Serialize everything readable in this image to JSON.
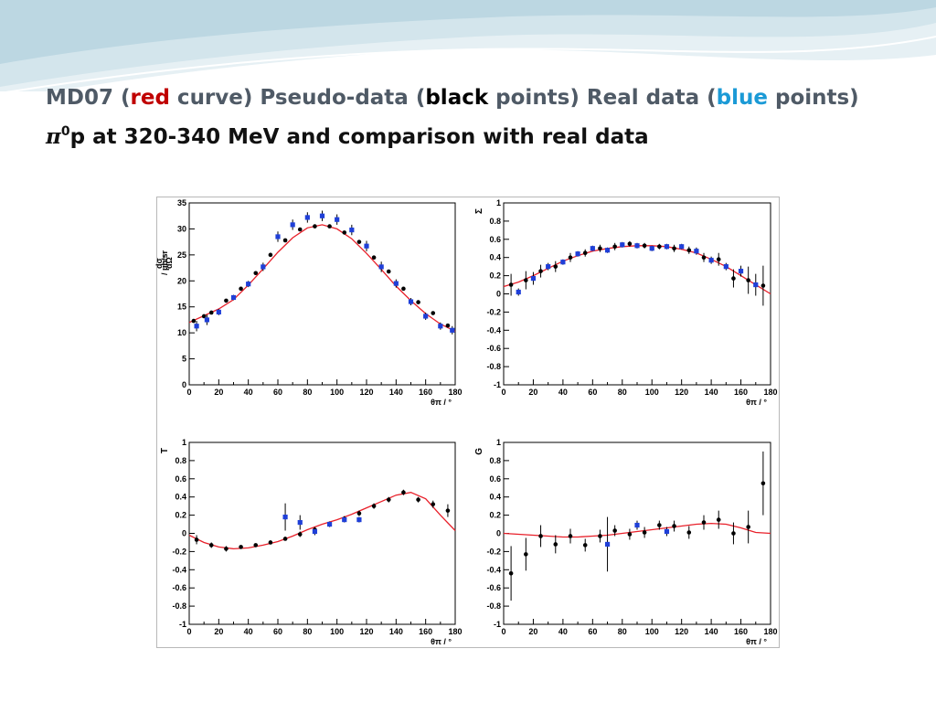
{
  "title": {
    "line1": {
      "prefix": "MD07 (",
      "red_word": "red",
      "after_red": " curve) Pseudo-data (",
      "black_word": "black",
      "after_black": " points) Real data (",
      "blue_word": "blue",
      "suffix": " points)"
    },
    "line2": {
      "symbol": "π",
      "superscript": "0",
      "text": "p at 320-340 MeV and comparison with real data"
    }
  },
  "colors": {
    "title_text": "#4f5a66",
    "red_word": "#c00000",
    "blue_word": "#1b9ad6",
    "model_curve": "#e8202a",
    "pseudo_data": "#000000",
    "real_data": "#1f3fd8",
    "decor_wave_light": "#dcebf1",
    "decor_wave_mid": "#b9d6e2"
  },
  "chart_data": [
    {
      "type": "scatter",
      "panel": "top-left",
      "ylabel_top": "dσ",
      "ylabel_bottom": "dΩ",
      "ylabel_unit": "/ μb/sr",
      "xlabel": "θπ / °",
      "xlim": [
        0,
        180
      ],
      "ylim": [
        0,
        35
      ],
      "xticks": [
        0,
        20,
        40,
        60,
        80,
        100,
        120,
        140,
        160,
        180
      ],
      "yticks": [
        0,
        5,
        10,
        15,
        20,
        25,
        30,
        35
      ],
      "curve": [
        [
          0,
          12
        ],
        [
          10,
          13.3
        ],
        [
          20,
          14.6
        ],
        [
          30,
          16.4
        ],
        [
          40,
          19.2
        ],
        [
          50,
          22.3
        ],
        [
          60,
          25.5
        ],
        [
          70,
          28.3
        ],
        [
          80,
          30.2
        ],
        [
          90,
          30.8
        ],
        [
          100,
          30
        ],
        [
          110,
          28.1
        ],
        [
          120,
          25.3
        ],
        [
          130,
          22.2
        ],
        [
          140,
          19
        ],
        [
          150,
          16.2
        ],
        [
          160,
          13.7
        ],
        [
          170,
          11.7
        ],
        [
          180,
          10.3
        ]
      ],
      "pseudo_data": [
        [
          3,
          12.3
        ],
        [
          10,
          13.2
        ],
        [
          15,
          13.9
        ],
        [
          25,
          16.2
        ],
        [
          35,
          18.5
        ],
        [
          45,
          21.5
        ],
        [
          55,
          25
        ],
        [
          65,
          27.8
        ],
        [
          75,
          29.9
        ],
        [
          85,
          30.5
        ],
        [
          95,
          30.5
        ],
        [
          105,
          29.3
        ],
        [
          115,
          27.5
        ],
        [
          125,
          24.5
        ],
        [
          135,
          21.8
        ],
        [
          145,
          18.5
        ],
        [
          155,
          15.9
        ],
        [
          165,
          13.8
        ],
        [
          175,
          11.4
        ]
      ],
      "real_data": [
        [
          5,
          11.3,
          1
        ],
        [
          12,
          12.5,
          1
        ],
        [
          20,
          14,
          0.6
        ],
        [
          30,
          16.8,
          0.5
        ],
        [
          40,
          19.4,
          0.6
        ],
        [
          50,
          22.7,
          0.8
        ],
        [
          60,
          28.5,
          1
        ],
        [
          70,
          30.8,
          1
        ],
        [
          80,
          32.2,
          1
        ],
        [
          90,
          32.5,
          1
        ],
        [
          100,
          31.8,
          1
        ],
        [
          110,
          29.8,
          1
        ],
        [
          120,
          26.7,
          1
        ],
        [
          130,
          22.7,
          1
        ],
        [
          140,
          19.5,
          0.8
        ],
        [
          150,
          16,
          0.7
        ],
        [
          160,
          13.2,
          0.7
        ],
        [
          170,
          11.3,
          0.7
        ],
        [
          178,
          10.5,
          0.8
        ]
      ]
    },
    {
      "type": "scatter",
      "panel": "top-right",
      "ylabel": "Σ",
      "xlabel": "θπ / °",
      "xlim": [
        0,
        180
      ],
      "ylim": [
        -1,
        1
      ],
      "xticks": [
        0,
        20,
        40,
        60,
        80,
        100,
        120,
        140,
        160,
        180
      ],
      "yticks": [
        -1,
        -0.8,
        -0.6,
        -0.4,
        -0.2,
        0,
        0.2,
        0.4,
        0.6,
        0.8,
        1
      ],
      "curve": [
        [
          0,
          0.08
        ],
        [
          10,
          0.13
        ],
        [
          20,
          0.2
        ],
        [
          30,
          0.28
        ],
        [
          40,
          0.36
        ],
        [
          50,
          0.42
        ],
        [
          60,
          0.47
        ],
        [
          70,
          0.5
        ],
        [
          80,
          0.52
        ],
        [
          90,
          0.53
        ],
        [
          100,
          0.53
        ],
        [
          110,
          0.52
        ],
        [
          120,
          0.49
        ],
        [
          130,
          0.45
        ],
        [
          140,
          0.38
        ],
        [
          150,
          0.3
        ],
        [
          160,
          0.2
        ],
        [
          170,
          0.1
        ],
        [
          180,
          0
        ]
      ],
      "pseudo_data": [
        [
          5,
          0.1,
          0.12
        ],
        [
          15,
          0.15,
          0.1
        ],
        [
          25,
          0.25,
          0.07
        ],
        [
          35,
          0.3,
          0.06
        ],
        [
          45,
          0.4,
          0.05
        ],
        [
          55,
          0.45,
          0.04
        ],
        [
          65,
          0.5,
          0.04
        ],
        [
          75,
          0.52,
          0.04
        ],
        [
          85,
          0.55,
          0.03
        ],
        [
          95,
          0.53,
          0.03
        ],
        [
          105,
          0.52,
          0.03
        ],
        [
          115,
          0.5,
          0.04
        ],
        [
          125,
          0.48,
          0.04
        ],
        [
          135,
          0.4,
          0.05
        ],
        [
          145,
          0.38,
          0.07
        ],
        [
          155,
          0.17,
          0.1
        ],
        [
          165,
          0.15,
          0.15
        ],
        [
          175,
          0.09,
          0.22
        ]
      ],
      "real_data": [
        [
          10,
          0.02,
          0.04
        ],
        [
          20,
          0.17,
          0.07
        ],
        [
          30,
          0.3,
          0.04
        ],
        [
          40,
          0.35,
          0.03
        ],
        [
          50,
          0.44,
          0.03
        ],
        [
          60,
          0.5,
          0.03
        ],
        [
          70,
          0.48,
          0.03
        ],
        [
          80,
          0.54,
          0.03
        ],
        [
          90,
          0.53,
          0.03
        ],
        [
          100,
          0.5,
          0.03
        ],
        [
          110,
          0.52,
          0.03
        ],
        [
          120,
          0.52,
          0.03
        ],
        [
          130,
          0.47,
          0.04
        ],
        [
          140,
          0.37,
          0.04
        ],
        [
          150,
          0.3,
          0.04
        ],
        [
          160,
          0.25,
          0.06
        ],
        [
          170,
          0.1,
          0.12
        ]
      ]
    },
    {
      "type": "scatter",
      "panel": "bottom-left",
      "ylabel": "T",
      "xlabel": "θπ / °",
      "xlim": [
        0,
        180
      ],
      "ylim": [
        -1,
        1
      ],
      "xticks": [
        0,
        20,
        40,
        60,
        80,
        100,
        120,
        140,
        160,
        180
      ],
      "yticks": [
        -1,
        -0.8,
        -0.6,
        -0.4,
        -0.2,
        0,
        0.2,
        0.4,
        0.6,
        0.8,
        1
      ],
      "curve": [
        [
          0,
          -0.02
        ],
        [
          10,
          -0.1
        ],
        [
          20,
          -0.15
        ],
        [
          30,
          -0.17
        ],
        [
          40,
          -0.16
        ],
        [
          50,
          -0.13
        ],
        [
          60,
          -0.09
        ],
        [
          70,
          -0.03
        ],
        [
          80,
          0.04
        ],
        [
          90,
          0.1
        ],
        [
          100,
          0.15
        ],
        [
          110,
          0.21
        ],
        [
          120,
          0.28
        ],
        [
          130,
          0.35
        ],
        [
          140,
          0.42
        ],
        [
          150,
          0.45
        ],
        [
          160,
          0.38
        ],
        [
          170,
          0.2
        ],
        [
          180,
          0.03
        ]
      ],
      "pseudo_data": [
        [
          5,
          -0.07,
          0.05
        ],
        [
          15,
          -0.13,
          0.03
        ],
        [
          25,
          -0.17,
          0.03
        ],
        [
          35,
          -0.15,
          0.02
        ],
        [
          45,
          -0.13,
          0.02
        ],
        [
          55,
          -0.1,
          0.02
        ],
        [
          65,
          -0.06,
          0.02
        ],
        [
          75,
          -0.01,
          0.03
        ],
        [
          85,
          0.04,
          0.03
        ],
        [
          95,
          0.1,
          0.03
        ],
        [
          105,
          0.16,
          0.03
        ],
        [
          115,
          0.22,
          0.03
        ],
        [
          125,
          0.3,
          0.03
        ],
        [
          135,
          0.37,
          0.03
        ],
        [
          145,
          0.45,
          0.03
        ],
        [
          155,
          0.37,
          0.03
        ],
        [
          165,
          0.32,
          0.04
        ],
        [
          175,
          0.25,
          0.07
        ]
      ],
      "real_data": [
        [
          65,
          0.18,
          0.15
        ],
        [
          75,
          0.12,
          0.08
        ],
        [
          85,
          0.02,
          0.04
        ],
        [
          95,
          0.1,
          0.03
        ],
        [
          105,
          0.15,
          0.03
        ],
        [
          115,
          0.15,
          0.03
        ]
      ]
    },
    {
      "type": "scatter",
      "panel": "bottom-right",
      "ylabel": "G",
      "xlabel": "θπ / °",
      "xlim": [
        0,
        180
      ],
      "ylim": [
        -1,
        1
      ],
      "xticks": [
        0,
        20,
        40,
        60,
        80,
        100,
        120,
        140,
        160,
        180
      ],
      "yticks": [
        -1,
        -0.8,
        -0.6,
        -0.4,
        -0.2,
        0,
        0.2,
        0.4,
        0.6,
        0.8,
        1
      ],
      "curve": [
        [
          0,
          0
        ],
        [
          10,
          -0.01
        ],
        [
          20,
          -0.02
        ],
        [
          30,
          -0.03
        ],
        [
          40,
          -0.04
        ],
        [
          50,
          -0.04
        ],
        [
          60,
          -0.03
        ],
        [
          70,
          -0.02
        ],
        [
          80,
          0
        ],
        [
          90,
          0.02
        ],
        [
          100,
          0.04
        ],
        [
          110,
          0.06
        ],
        [
          120,
          0.08
        ],
        [
          130,
          0.1
        ],
        [
          140,
          0.11
        ],
        [
          150,
          0.1
        ],
        [
          160,
          0.06
        ],
        [
          170,
          0.01
        ],
        [
          180,
          0
        ]
      ],
      "pseudo_data": [
        [
          5,
          -0.44,
          0.3
        ],
        [
          15,
          -0.23,
          0.18
        ],
        [
          25,
          -0.03,
          0.12
        ],
        [
          35,
          -0.12,
          0.1
        ],
        [
          45,
          -0.03,
          0.08
        ],
        [
          55,
          -0.13,
          0.07
        ],
        [
          65,
          -0.03,
          0.07
        ],
        [
          75,
          0.03,
          0.06
        ],
        [
          85,
          -0.01,
          0.06
        ],
        [
          95,
          0.01,
          0.06
        ],
        [
          105,
          0.09,
          0.05
        ],
        [
          115,
          0.08,
          0.06
        ],
        [
          125,
          0.01,
          0.07
        ],
        [
          135,
          0.12,
          0.08
        ],
        [
          145,
          0.15,
          0.1
        ],
        [
          155,
          0,
          0.12
        ],
        [
          165,
          0.07,
          0.18
        ],
        [
          175,
          0.55,
          0.35
        ]
      ],
      "real_data": [
        [
          70,
          -0.12,
          0.3
        ],
        [
          90,
          0.09,
          0.05
        ],
        [
          110,
          0.02,
          0.05
        ]
      ]
    }
  ]
}
